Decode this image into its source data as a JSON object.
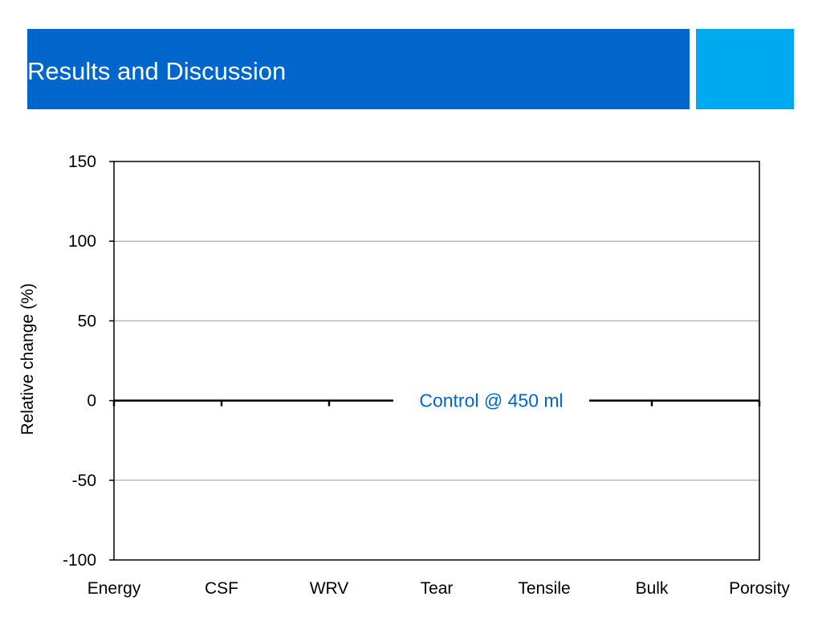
{
  "slide": {
    "title": "Results and Discussion",
    "colors": {
      "header": "#0066cc",
      "accent": "#00aaee",
      "annotation": "#0066cc"
    }
  },
  "chart_data": {
    "type": "bar",
    "categories": [
      "Energy",
      "CSF",
      "WRV",
      "Tear",
      "Tensile",
      "Bulk",
      "Porosity"
    ],
    "series": [],
    "ylabel": "Relative change (%)",
    "ylim": [
      -100,
      150
    ],
    "yticks": [
      -100,
      -50,
      0,
      50,
      100,
      150
    ],
    "grid": true,
    "legend": "none",
    "annotations": [
      {
        "text": "Control @ 450 ml",
        "y": 0
      }
    ]
  }
}
